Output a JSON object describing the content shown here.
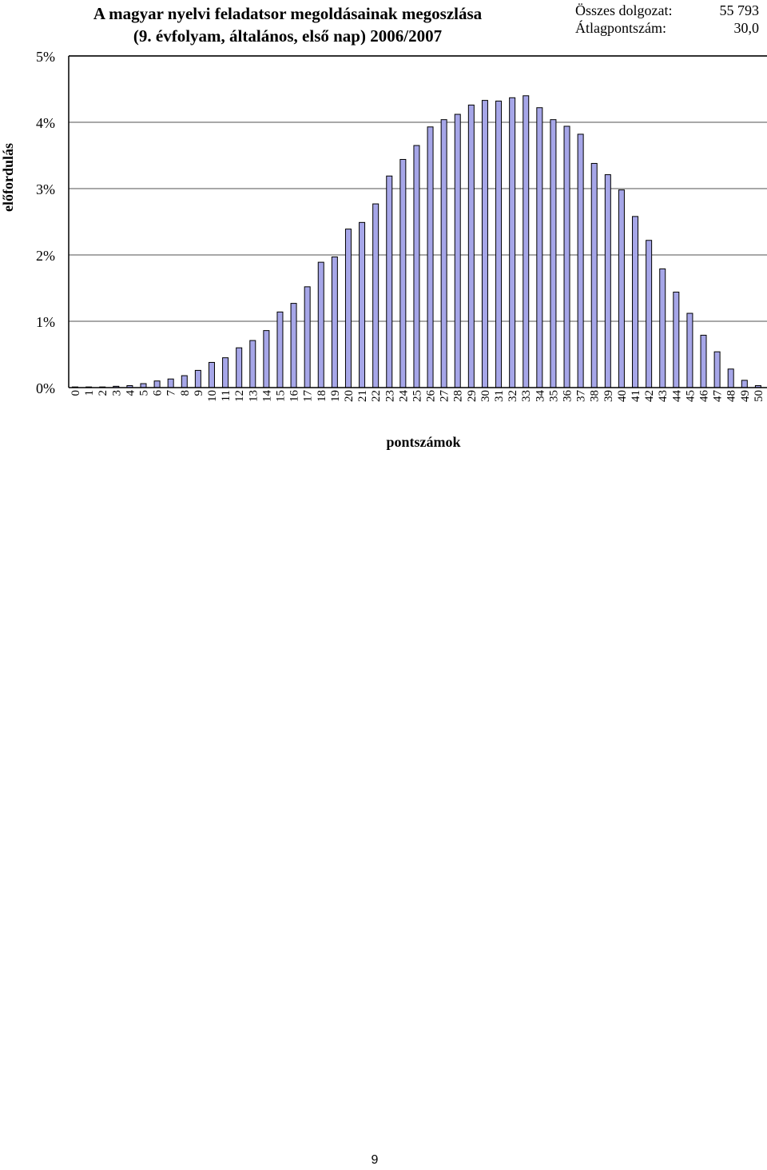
{
  "chart_data": {
    "type": "bar",
    "title": "A magyar nyelvi feladatsor megoldásainak megoszlása",
    "subtitle": "(9. évfolyam, általános, első nap) 2006/2007",
    "xlabel": "pontszámok",
    "ylabel": "előfordulás",
    "ylim": [
      0,
      5
    ],
    "yticks": [
      "0%",
      "1%",
      "2%",
      "3%",
      "4%",
      "5%"
    ],
    "grid": true,
    "bar_color": "#a6a6e8",
    "categories": [
      "0",
      "1",
      "2",
      "3",
      "4",
      "5",
      "6",
      "7",
      "8",
      "9",
      "10",
      "11",
      "12",
      "13",
      "14",
      "15",
      "16",
      "17",
      "18",
      "19",
      "20",
      "21",
      "22",
      "23",
      "24",
      "25",
      "26",
      "27",
      "28",
      "29",
      "30",
      "31",
      "32",
      "33",
      "34",
      "35",
      "36",
      "37",
      "38",
      "39",
      "40",
      "41",
      "42",
      "43",
      "44",
      "45",
      "46",
      "47",
      "48",
      "49",
      "50"
    ],
    "values": [
      0.01,
      0.01,
      0.01,
      0.02,
      0.03,
      0.06,
      0.1,
      0.13,
      0.18,
      0.26,
      0.38,
      0.45,
      0.6,
      0.71,
      0.86,
      1.14,
      1.27,
      1.52,
      1.89,
      1.97,
      2.39,
      2.49,
      2.77,
      3.19,
      3.44,
      3.65,
      3.93,
      4.04,
      4.12,
      4.26,
      4.33,
      4.32,
      4.37,
      4.4,
      4.22,
      4.04,
      3.94,
      3.82,
      3.38,
      3.21,
      2.98,
      2.58,
      2.22,
      1.79,
      1.44,
      1.12,
      0.79,
      0.54,
      0.28,
      0.11,
      0.03
    ]
  },
  "stats": {
    "total_label": "Összes dolgozat:",
    "total_value": "55 793",
    "avg_label": "Átlagpontszám:",
    "avg_value": "30,0"
  },
  "page_number": "9"
}
